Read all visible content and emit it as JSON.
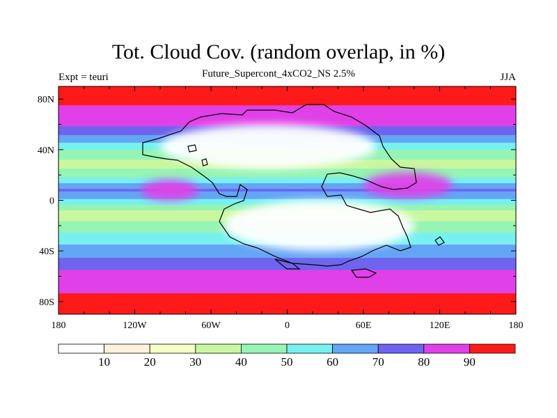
{
  "title": "Tot. Cloud Cov. (random overlap, in %)",
  "subtitle": "Future_Supercont_4xCO2_NS 2.5%",
  "experiment_label": "Expt = teuri",
  "season": "JJA",
  "chart_data": {
    "type": "heatmap",
    "projection": "cylindrical equidistant",
    "xlim": [
      -180,
      180
    ],
    "ylim": [
      -90,
      90
    ],
    "x_ticks": [
      "180",
      "120W",
      "60W",
      "0",
      "60E",
      "120E",
      "180"
    ],
    "x_tick_values": [
      -180,
      -120,
      -60,
      0,
      60,
      120,
      180
    ],
    "y_ticks": [
      "80N",
      "40N",
      "0",
      "40S",
      "80S"
    ],
    "y_tick_values": [
      80,
      40,
      0,
      -40,
      -80
    ],
    "colorbar": {
      "levels": [
        "10",
        "20",
        "30",
        "40",
        "50",
        "60",
        "70",
        "80",
        "90"
      ],
      "colors": [
        "#ffffff",
        "#fff2dc",
        "#f6ffc6",
        "#c8f7a0",
        "#96f4b4",
        "#78f0f0",
        "#64a5f5",
        "#6e64ee",
        "#e040e8",
        "#ff1a1a"
      ]
    },
    "zonal_cloud_cover_by_latitude": [
      {
        "lat": 90,
        "value": 95
      },
      {
        "lat": 75,
        "value": 90
      },
      {
        "lat": 60,
        "value": 82
      },
      {
        "lat": 50,
        "value": 68
      },
      {
        "lat": 38,
        "value": 46
      },
      {
        "lat": 28,
        "value": 36
      },
      {
        "lat": 18,
        "value": 50
      },
      {
        "lat": 8,
        "value": 72
      },
      {
        "lat": 0,
        "value": 58
      },
      {
        "lat": -10,
        "value": 36
      },
      {
        "lat": -20,
        "value": 42
      },
      {
        "lat": -30,
        "value": 56
      },
      {
        "lat": -42,
        "value": 66
      },
      {
        "lat": -52,
        "value": 78
      },
      {
        "lat": -65,
        "value": 86
      },
      {
        "lat": -80,
        "value": 93
      },
      {
        "lat": -90,
        "value": 95
      }
    ],
    "regional_features": [
      {
        "name": "northern continent interior",
        "lon": [
          -100,
          70
        ],
        "lat": [
          25,
          60
        ],
        "value": 5
      },
      {
        "name": "southern continent interior",
        "lon": [
          -50,
          100
        ],
        "lat": [
          -40,
          0
        ],
        "value": 5
      },
      {
        "name": "eastern tropical maximum",
        "lon": [
          60,
          130
        ],
        "lat": [
          2,
          22
        ],
        "value": 85
      },
      {
        "name": "western tropical maximum",
        "lon": [
          -115,
          -70
        ],
        "lat": [
          0,
          16
        ],
        "value": 85
      }
    ]
  }
}
